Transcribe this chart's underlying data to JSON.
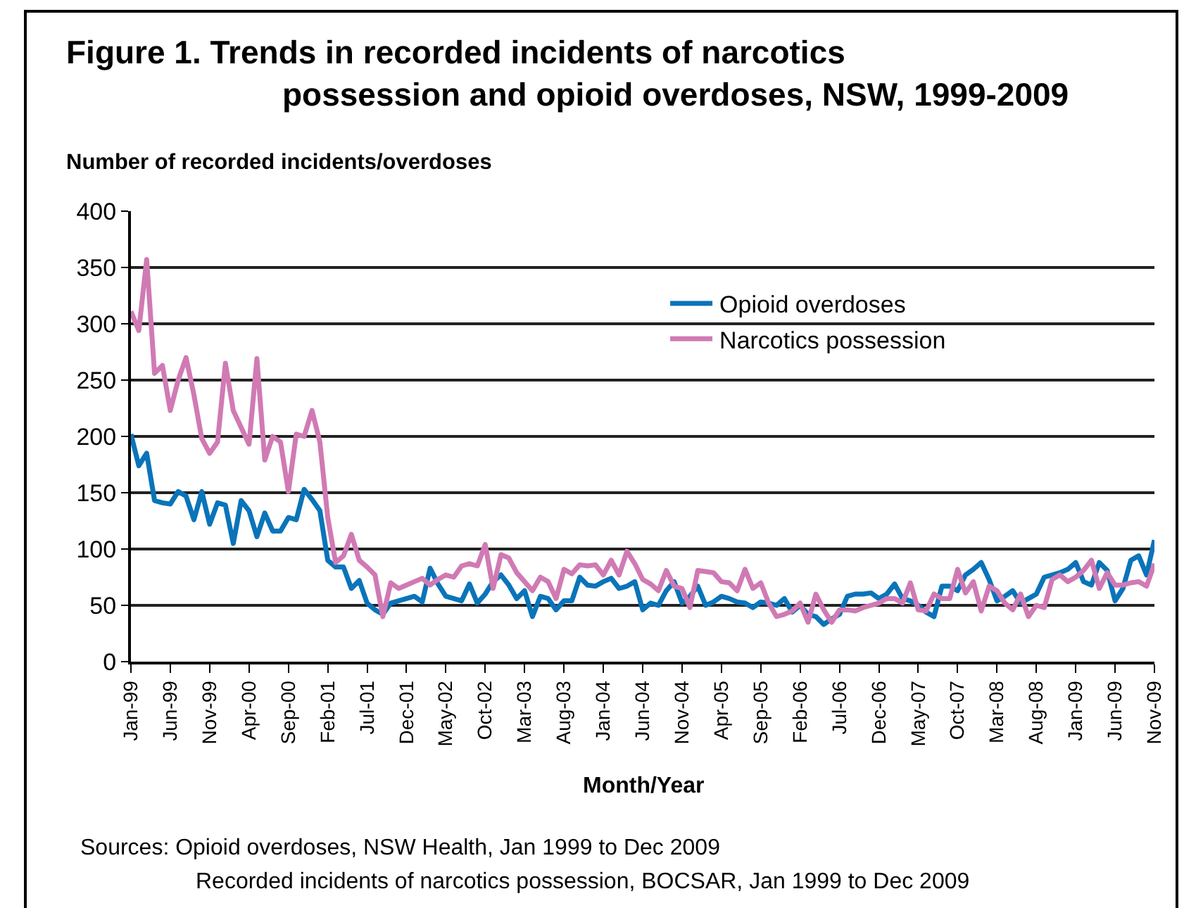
{
  "chart_data": {
    "type": "line",
    "title": "Figure 1. Trends in recorded incidents of narcotics\npossession and opioid overdoses, NSW, 1999-2009",
    "xlabel": "Month/Year",
    "ylabel": "Number of recorded incidents/overdoses",
    "categories": [
      "Jan-99",
      null,
      null,
      null,
      null,
      "Jun-99",
      null,
      null,
      null,
      null,
      "Nov-99",
      null,
      null,
      null,
      null,
      "Apr-00",
      null,
      null,
      null,
      null,
      "Sep-00",
      null,
      null,
      null,
      null,
      "Feb-01",
      null,
      null,
      null,
      null,
      "Jul-01",
      null,
      null,
      null,
      null,
      "Dec-01",
      null,
      null,
      null,
      null,
      "May-02",
      null,
      null,
      null,
      null,
      "Oct-02",
      null,
      null,
      null,
      null,
      "Mar-03",
      null,
      null,
      null,
      null,
      "Aug-03",
      null,
      null,
      null,
      null,
      "Jan-04",
      null,
      null,
      null,
      null,
      "Jun-04",
      null,
      null,
      null,
      null,
      "Nov-04",
      null,
      null,
      null,
      null,
      "Apr-05",
      null,
      null,
      null,
      null,
      "Sep-05",
      null,
      null,
      null,
      null,
      "Feb-06",
      null,
      null,
      null,
      null,
      "Jul-06",
      null,
      null,
      null,
      null,
      "Dec-06",
      null,
      null,
      null,
      null,
      "May-07",
      null,
      null,
      null,
      null,
      "Oct-07",
      null,
      null,
      null,
      null,
      "Mar-08",
      null,
      null,
      null,
      null,
      "Aug-08",
      null,
      null,
      null,
      null,
      "Jan-09",
      null,
      null,
      null,
      null,
      "Jun-09",
      null,
      null,
      null,
      null,
      "Nov-09"
    ],
    "series": [
      {
        "name": "Opioid overdoses",
        "color": "#0a74b9",
        "values": [
          202,
          174,
          185,
          143,
          141,
          140,
          151,
          147,
          126,
          151,
          122,
          141,
          139,
          105,
          143,
          134,
          111,
          132,
          116,
          116,
          128,
          126,
          153,
          144,
          134,
          90,
          84,
          84,
          65,
          72,
          52,
          46,
          42,
          52,
          54,
          56,
          58,
          53,
          83,
          69,
          58,
          56,
          54,
          69,
          52,
          60,
          71,
          77,
          68,
          56,
          63,
          40,
          58,
          56,
          46,
          54,
          54,
          75,
          68,
          67,
          71,
          74,
          65,
          67,
          71,
          46,
          52,
          50,
          63,
          71,
          52,
          58,
          67,
          50,
          53,
          58,
          56,
          53,
          52,
          48,
          53,
          52,
          50,
          56,
          44,
          50,
          42,
          40,
          33,
          38,
          42,
          58,
          60,
          60,
          61,
          56,
          60,
          69,
          56,
          54,
          50,
          44,
          40,
          67,
          67,
          63,
          77,
          82,
          88,
          73,
          54,
          58,
          63,
          52,
          56,
          60,
          75,
          77,
          79,
          82,
          88,
          71,
          68,
          88,
          81,
          54,
          65,
          90,
          94,
          77,
          108
        ]
      },
      {
        "name": "Narcotics possession",
        "color": "#d07ab4",
        "values": [
          311,
          294,
          357,
          256,
          263,
          223,
          250,
          270,
          237,
          198,
          185,
          195,
          265,
          223,
          208,
          193,
          269,
          179,
          200,
          195,
          151,
          202,
          200,
          223,
          195,
          128,
          88,
          94,
          113,
          90,
          84,
          77,
          40,
          70,
          65,
          68,
          71,
          74,
          68,
          73,
          77,
          75,
          85,
          87,
          85,
          104,
          65,
          95,
          92,
          79,
          71,
          63,
          75,
          71,
          56,
          82,
          78,
          86,
          85,
          86,
          77,
          90,
          77,
          98,
          87,
          73,
          69,
          63,
          81,
          67,
          65,
          48,
          81,
          80,
          79,
          71,
          70,
          63,
          82,
          65,
          70,
          52,
          40,
          42,
          45,
          52,
          35,
          60,
          46,
          35,
          46,
          46,
          45,
          48,
          50,
          52,
          56,
          56,
          52,
          70,
          46,
          45,
          60,
          56,
          56,
          82,
          61,
          71,
          45,
          67,
          63,
          52,
          46,
          60,
          40,
          50,
          48,
          73,
          77,
          71,
          75,
          81,
          90,
          65,
          79,
          68,
          68,
          70,
          71,
          67,
          87
        ]
      }
    ],
    "ylim": [
      0,
      400
    ],
    "yticks": [
      0,
      50,
      100,
      150,
      200,
      250,
      300,
      350,
      400
    ],
    "grid": "y",
    "legend": "top right",
    "marker": "none",
    "line_style": "solid",
    "annotations": [
      "Sources: Opioid overdoses, NSW Health, Jan 1999 to Dec 2009",
      "Recorded incidents of narcotics possession, BOCSAR, Jan 1999 to Dec 2009"
    ]
  }
}
